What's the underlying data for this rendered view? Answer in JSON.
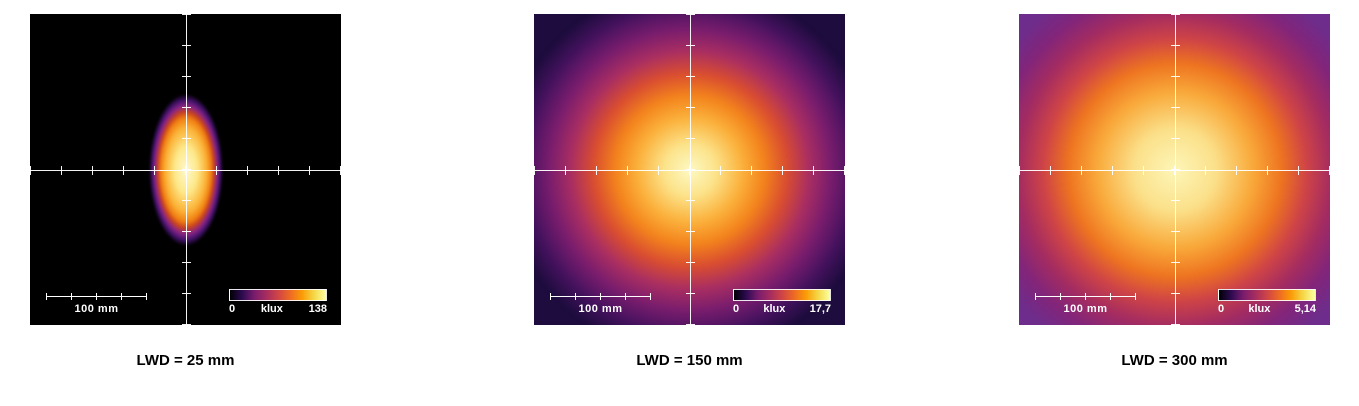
{
  "figure": {
    "panels": [
      {
        "caption": "LWD = 25 mm",
        "scale_bar_label": "100 mm",
        "colorbar": {
          "min_label": "0",
          "unit_label": "klux",
          "max_label": "138"
        },
        "background_color": "#000000",
        "peak_color": "#fcffa4"
      },
      {
        "caption": "LWD = 150 mm",
        "scale_bar_label": "100 mm",
        "colorbar": {
          "min_label": "0",
          "unit_label": "klux",
          "max_label": "17,7"
        },
        "background_color": "#1d0c3d",
        "peak_color": "#fcffa4"
      },
      {
        "caption": "LWD = 300 mm",
        "scale_bar_label": "100 mm",
        "colorbar": {
          "min_label": "0",
          "unit_label": "klux",
          "max_label": "5,14"
        },
        "background_color": "#6e2d8c",
        "peak_color": "#fcffa4"
      }
    ]
  },
  "chart_data": [
    {
      "type": "heatmap",
      "title": "LWD = 25 mm",
      "value_unit": "klux",
      "colorbar_range": [
        0,
        138
      ],
      "colorbar_min_label": "0",
      "colorbar_max_label": "138",
      "peak_value_klux": 138,
      "scale_bar": {
        "label": "100 mm",
        "length_mm": 100
      },
      "colormap": "inferno-like (black-purple-red-orange-yellow)",
      "crosshair": "white centered axes with tick marks",
      "distribution": "small vertically elongated bright spot (~40 mm wide x ~110 mm tall) centered on crosshair; surrounding field essentially 0 klux (black)"
    },
    {
      "type": "heatmap",
      "title": "LWD = 150 mm",
      "value_unit": "klux",
      "colorbar_range": [
        0,
        17.7
      ],
      "colorbar_min_label": "0",
      "colorbar_max_label": "17,7",
      "peak_value_klux": 17.7,
      "scale_bar": {
        "label": "100 mm",
        "length_mm": 100
      },
      "colormap": "inferno-like (black-purple-red-orange-yellow)",
      "crosshair": "white centered axes with tick marks",
      "distribution": "broad circular glow roughly 200 mm across centered on crosshair, fading smoothly into dark purple background"
    },
    {
      "type": "heatmap",
      "title": "LWD = 300 mm",
      "value_unit": "klux",
      "colorbar_range": [
        0,
        5.14
      ],
      "colorbar_min_label": "0",
      "colorbar_max_label": "5,14",
      "peak_value_klux": 5.14,
      "scale_bar": {
        "label": "100 mm",
        "length_mm": 100
      },
      "colormap": "inferno-like (black-purple-red-orange-yellow)",
      "crosshair": "white centered axes with tick marks",
      "distribution": "very broad circular glow filling most of the field; overall background level elevated (medium purple)"
    }
  ]
}
